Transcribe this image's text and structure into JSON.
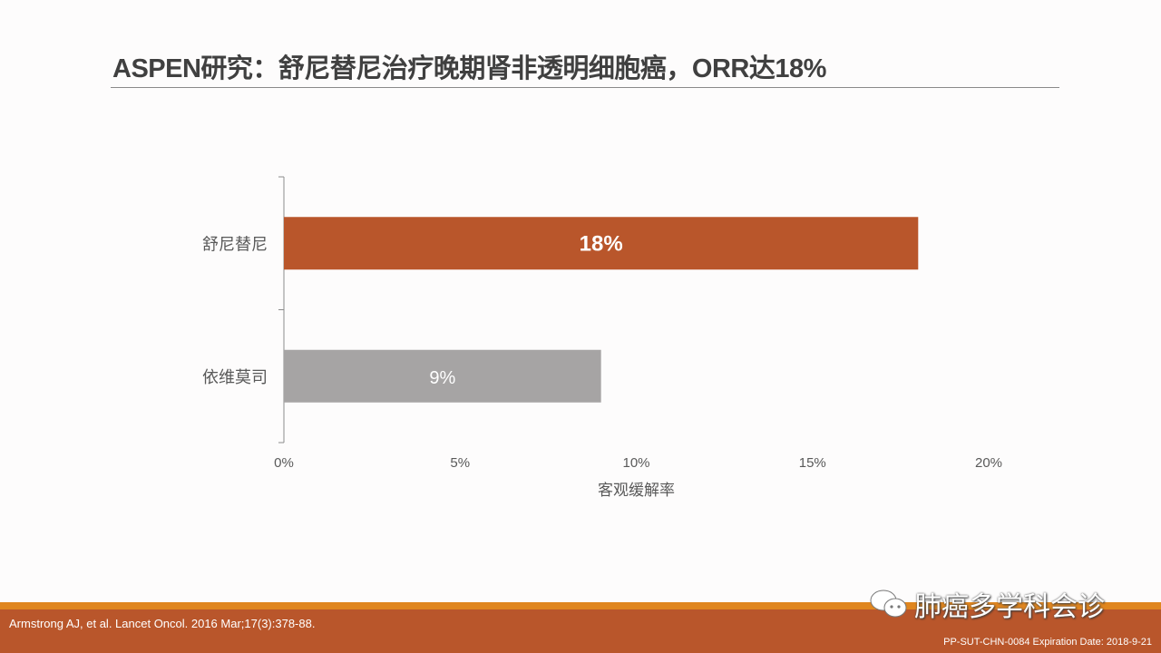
{
  "title": "ASPEN研究：舒尼替尼治疗晚期肾非透明细胞癌，ORR达18%",
  "chart_data": {
    "type": "bar",
    "orientation": "horizontal",
    "categories": [
      "舒尼替尼",
      "依维莫司"
    ],
    "values": [
      18,
      9
    ],
    "data_labels": [
      "18%",
      "9%"
    ],
    "colors": [
      "#b9562b",
      "#a6a4a4"
    ],
    "xlabel": "客观缓解率",
    "ylabel": "",
    "xlim": [
      0,
      20
    ],
    "xticks": [
      0,
      5,
      10,
      15,
      20
    ],
    "xtick_labels": [
      "0%",
      "5%",
      "10%",
      "15%",
      "20%"
    ],
    "grid": false
  },
  "footer": {
    "citation": "Armstrong AJ, et al. Lancet Oncol. 2016 Mar;17(3):378-88.",
    "code": "PP-SUT-CHN-0084  Expiration Date: 2018-9-21",
    "watermark": "肺癌多学科会诊"
  }
}
